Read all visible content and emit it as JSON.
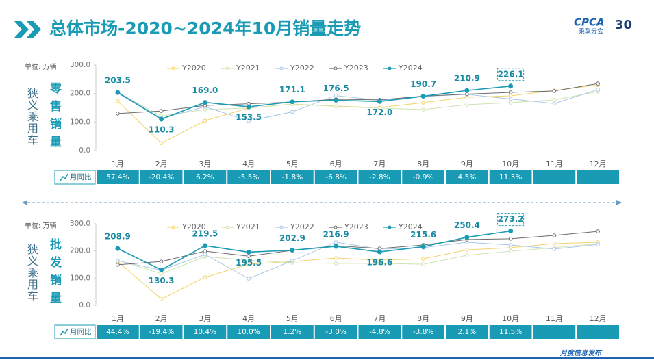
{
  "header": {
    "title": "总体市场-2020~2024年10月销量走势"
  },
  "logo": {
    "name": "CPCA",
    "sub": "乘联分会",
    "anniversary": "30"
  },
  "footer": {
    "text": "月度信息发布"
  },
  "chart_data": [
    {
      "type": "line",
      "segment": "狭义乘用车",
      "label": "零售销量",
      "unit": "单位: 万辆",
      "categories": [
        "1月",
        "2月",
        "3月",
        "4月",
        "5月",
        "6月",
        "7月",
        "8月",
        "9月",
        "10月",
        "11月",
        "12月"
      ],
      "ylim": [
        0,
        300
      ],
      "yticks": [
        {
          "value": 0,
          "label": "0.0"
        },
        {
          "value": 100,
          "label": "100.0"
        },
        {
          "value": 200,
          "label": "200.0"
        },
        {
          "value": 300,
          "label": "300.0"
        }
      ],
      "grid": false,
      "series": [
        {
          "name": "Y2020",
          "color": "#f3d36b",
          "values": [
            173,
            26,
            105,
            149,
            163,
            156,
            151,
            168,
            187,
            192,
            211,
            230
          ]
        },
        {
          "name": "Y2021",
          "color": "#cfe3b0",
          "values": [
            204,
            121,
            144,
            149,
            163,
            155,
            149,
            144,
            161,
            168,
            178,
            207
          ]
        },
        {
          "name": "Y2022",
          "color": "#a8c6e6",
          "values": [
            206,
            113,
            154,
            104,
            136,
            193,
            176,
            190,
            197,
            181,
            165,
            214
          ]
        },
        {
          "name": "Y2023",
          "color": "#6b6b6b",
          "values": [
            130,
            139,
            158,
            164,
            170,
            180,
            178,
            191,
            198,
            204,
            209,
            235
          ]
        },
        {
          "name": "Y2024",
          "color": "#1a9bb5",
          "values": [
            203.5,
            110.3,
            169.0,
            153.5,
            171.1,
            176.5,
            172.0,
            190.7,
            210.9,
            226.1,
            null,
            null
          ],
          "value_labels": [
            "203.5",
            "110.3",
            "169.0",
            "153.5",
            "171.1",
            "176.5",
            "172.0",
            "190.7",
            "210.9",
            "226.1",
            null,
            null
          ]
        }
      ],
      "yoy": {
        "label": "月同比",
        "values": [
          "57.4%",
          "-20.4%",
          "6.2%",
          "-5.5%",
          "-1.8%",
          "-6.8%",
          "-2.8%",
          "-0.9%",
          "4.5%",
          "11.3%",
          null,
          null
        ]
      }
    },
    {
      "type": "line",
      "segment": "狭义乘用车",
      "label": "批发销量",
      "unit": "单位: 万辆",
      "categories": [
        "1月",
        "2月",
        "3月",
        "4月",
        "5月",
        "6月",
        "7月",
        "8月",
        "9月",
        "10月",
        "11月",
        "12月"
      ],
      "ylim": [
        0,
        300
      ],
      "yticks": [
        {
          "value": 0,
          "label": "0.0"
        },
        {
          "value": 100,
          "label": "100.0"
        },
        {
          "value": 200,
          "label": "200.0"
        },
        {
          "value": 300,
          "label": "300.0"
        }
      ],
      "grid": false,
      "series": [
        {
          "name": "Y2020",
          "color": "#f3d36b",
          "values": [
            161,
            23,
            103,
            151,
            161,
            174,
            166,
            171,
            204,
            212,
            227,
            232
          ]
        },
        {
          "name": "Y2021",
          "color": "#cfe3b0",
          "values": [
            166,
            116,
            179,
            166,
            156,
            154,
            154,
            151,
            184,
            199,
            212,
            227
          ]
        },
        {
          "name": "Y2022",
          "color": "#a8c6e6",
          "values": [
            164,
            129,
            187,
            98,
            164,
            232,
            207,
            212,
            232,
            222,
            207,
            224
          ]
        },
        {
          "name": "Y2023",
          "color": "#6b6b6b",
          "values": [
            149,
            161,
            199,
            181,
            202,
            219,
            209,
            222,
            242,
            245,
            257,
            272
          ]
        },
        {
          "name": "Y2024",
          "color": "#1a9bb5",
          "values": [
            208.9,
            130.3,
            219.5,
            195.5,
            202.9,
            216.9,
            196.6,
            215.6,
            250.4,
            273.2,
            null,
            null
          ],
          "value_labels": [
            "208.9",
            "130.3",
            "219.5",
            "195.5",
            "202.9",
            "216.9",
            "196.6",
            "215.6",
            "250.4",
            "273.2",
            null,
            null
          ]
        }
      ],
      "yoy": {
        "label": "月同比",
        "values": [
          "44.4%",
          "-19.4%",
          "10.4%",
          "10.0%",
          "1.2%",
          "-3.0%",
          "-4.8%",
          "-3.8%",
          "2.1%",
          "11.5%",
          null,
          null
        ]
      }
    }
  ]
}
